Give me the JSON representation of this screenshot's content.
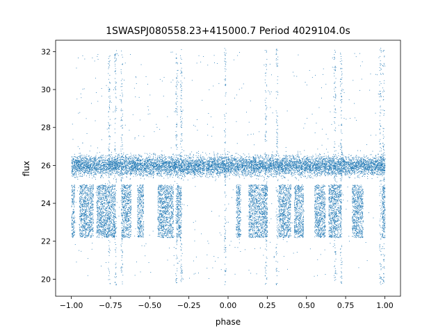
{
  "chart_data": {
    "type": "scatter",
    "title": "1SWASPJ080558.23+415000.7 Period 4029104.0s",
    "xlabel": "phase",
    "ylabel": "flux",
    "xlim": [
      -1.1,
      1.1
    ],
    "ylim": [
      19.1,
      32.6
    ],
    "grid": false,
    "legend": "none",
    "marker_color": "#1f77b4",
    "x_ticks": [
      -1.0,
      -0.75,
      -0.5,
      -0.25,
      0.0,
      0.25,
      0.5,
      0.75,
      1.0
    ],
    "x_tick_labels": [
      "−1.00",
      "−0.75",
      "−0.50",
      "−0.25",
      "0.00",
      "0.25",
      "0.50",
      "0.75",
      "1.00"
    ],
    "y_ticks": [
      20,
      22,
      24,
      26,
      28,
      30,
      32
    ],
    "y_tick_labels": [
      "20",
      "22",
      "24",
      "26",
      "28",
      "30",
      "32"
    ],
    "series": [
      {
        "description": "dense main band",
        "x_range": [
          -1.0,
          1.0
        ],
        "y_center": 26.0,
        "y_halfwidth": 0.7,
        "approx_points": 9000
      },
      {
        "description": "lower dip segments",
        "x_segments": [
          [
            -1.0,
            -0.98
          ],
          [
            -0.95,
            -0.86
          ],
          [
            -0.84,
            -0.72
          ],
          [
            -0.68,
            -0.62
          ],
          [
            -0.58,
            -0.54
          ],
          [
            -0.45,
            -0.35
          ],
          [
            -0.33,
            -0.3
          ],
          [
            0.05,
            0.08
          ],
          [
            0.13,
            0.25
          ],
          [
            0.32,
            0.4
          ],
          [
            0.42,
            0.48
          ],
          [
            0.55,
            0.62
          ],
          [
            0.64,
            0.72
          ],
          [
            0.79,
            0.86
          ],
          [
            0.98,
            1.0
          ]
        ],
        "y_range": [
          22.2,
          25.0
        ]
      },
      {
        "description": "vertical outlier streaks",
        "x_positions": [
          -0.76,
          -0.72,
          -0.68,
          -0.33,
          -0.3,
          -0.02,
          0.24,
          0.31,
          0.68,
          0.72,
          0.97,
          0.99
        ],
        "y_range": [
          19.7,
          32.2
        ]
      }
    ]
  }
}
